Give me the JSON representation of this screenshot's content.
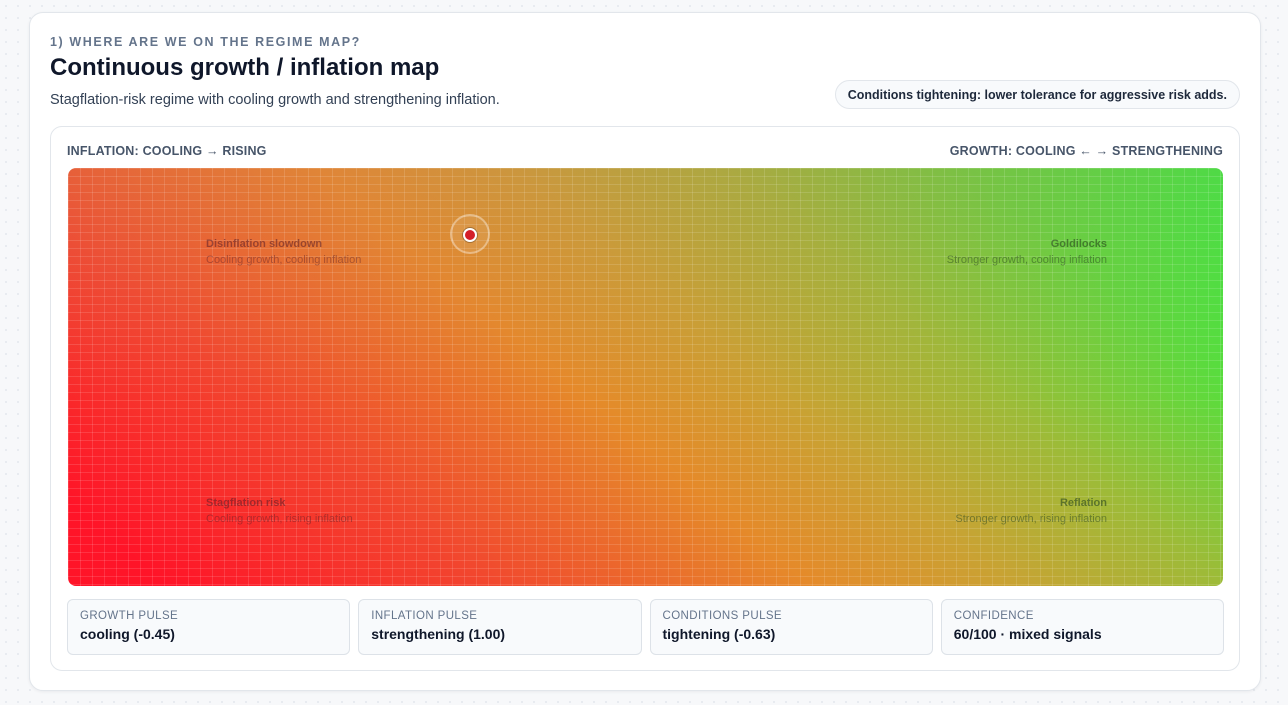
{
  "header": {
    "eyebrow": "1) WHERE ARE WE ON THE REGIME MAP?",
    "title": "Continuous growth / inflation map",
    "subtitle": "Stagflation-risk regime with cooling growth and strengthening inflation.",
    "conditions_pill": "Conditions tightening: lower tolerance for aggressive risk adds."
  },
  "map": {
    "inflation_axis_label": "INFLATION: COOLING → RISING",
    "growth_axis_label": "GROWTH: COOLING ← → STRENGTHENING",
    "quadrants": {
      "top_left": {
        "title": "Disinflation slowdown",
        "desc": "Cooling growth, cooling inflation"
      },
      "top_right": {
        "title": "Goldilocks",
        "desc": "Stronger growth, cooling inflation"
      },
      "bottom_left": {
        "title": "Stagflation risk",
        "desc": "Cooling growth, rising inflation"
      },
      "bottom_right": {
        "title": "Reflation",
        "desc": "Stronger growth, rising inflation"
      }
    },
    "marker_icon": "position-marker-icon",
    "colors": {
      "stagflation": "#ff1428",
      "goldilocks": "#1dff3f",
      "marker": "#d41f2a"
    }
  },
  "stats": [
    {
      "label": "GROWTH PULSE",
      "value": "cooling (-0.45)"
    },
    {
      "label": "INFLATION PULSE",
      "value": "strengthening (1.00)"
    },
    {
      "label": "CONDITIONS PULSE",
      "value": "tightening (-0.63)"
    },
    {
      "label": "CONFIDENCE",
      "value": "60/100 · mixed signals"
    }
  ]
}
